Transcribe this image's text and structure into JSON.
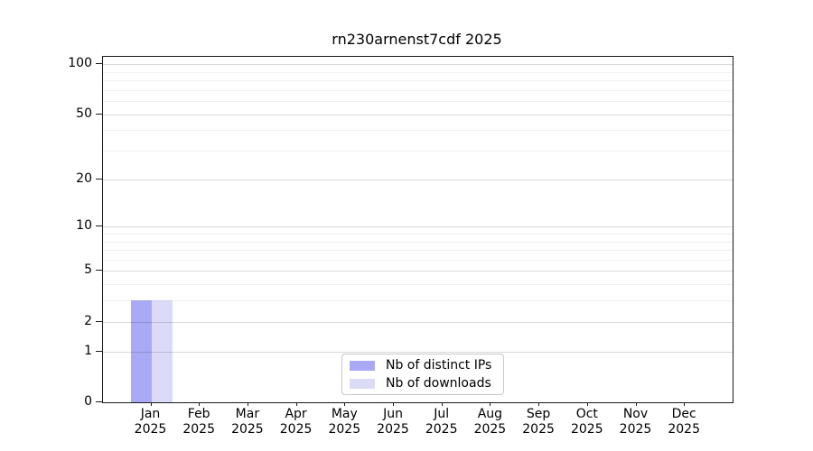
{
  "chart_data": {
    "type": "bar",
    "title": "rn230arnenst7cdf 2025",
    "categories": [
      "Jan\n2025",
      "Feb\n2025",
      "Mar\n2025",
      "Apr\n2025",
      "May\n2025",
      "Jun\n2025",
      "Jul\n2025",
      "Aug\n2025",
      "Sep\n2025",
      "Oct\n2025",
      "Nov\n2025",
      "Dec\n2025"
    ],
    "series": [
      {
        "name": "Nb of distinct IPs",
        "color": "#a9a9f5",
        "values": [
          3,
          0,
          0,
          0,
          0,
          0,
          0,
          0,
          0,
          0,
          0,
          0
        ]
      },
      {
        "name": "Nb of downloads",
        "color": "#dbdbf8",
        "values": [
          3,
          0,
          0,
          0,
          0,
          0,
          0,
          0,
          0,
          0,
          0,
          0
        ]
      }
    ],
    "xlabel": "",
    "ylabel": "",
    "yscale": "log1p",
    "ylim": [
      0,
      110
    ],
    "yticks": [
      0,
      1,
      2,
      5,
      10,
      20,
      50,
      100
    ],
    "yticks_minor": [
      3,
      4,
      6,
      7,
      8,
      9,
      30,
      40,
      60,
      70,
      80,
      90
    ],
    "grid": "horizontal",
    "legend_position": "lower-center"
  },
  "colors": {
    "axis": "#1a1a1a",
    "background": "#ffffff",
    "legend_border": "#c8c8c8"
  }
}
